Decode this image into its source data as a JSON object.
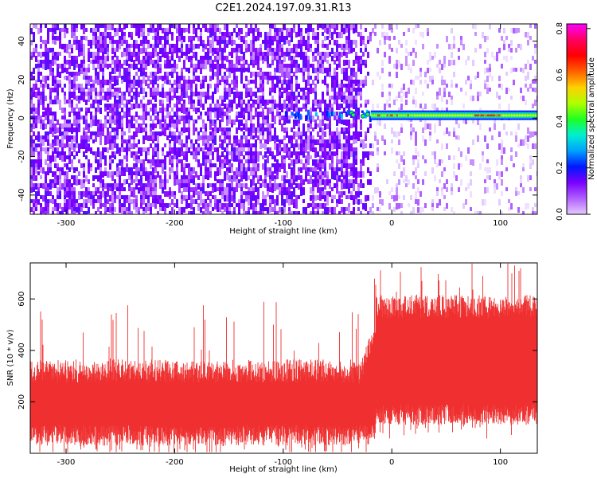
{
  "title": "C2E1.2024.197.09.31.R13",
  "colors": {
    "snr_trace": "#f03030",
    "background": "#ffffff",
    "colormap": [
      "#ffffff",
      "#e6ccff",
      "#b060ff",
      "#7a00ff",
      "#0018ff",
      "#00a0ff",
      "#00f0d0",
      "#20ff20",
      "#b0ff00",
      "#ffd000",
      "#ff6000",
      "#ff0000",
      "#ff0060",
      "#ff00ff"
    ]
  },
  "chart_data": [
    {
      "type": "heatmap",
      "name": "spectrogram",
      "xlabel": "Height of straight line (km)",
      "ylabel": "Frequency (Hz)",
      "xlim": [
        -333,
        134
      ],
      "ylim": [
        -50,
        49
      ],
      "xticks": [
        -300,
        -200,
        -100,
        0,
        100
      ],
      "yticks": [
        -40,
        -20,
        0,
        20,
        40
      ],
      "colorbar": {
        "label": "Normalized spectral amplitude",
        "range": [
          0.0,
          0.82
        ],
        "ticks": [
          "0.0",
          "0.2",
          "0.4",
          "0.6",
          "0.8"
        ]
      },
      "features": {
        "noise_dense_until_km": -35,
        "noise_fade_end_km": -20,
        "signal_line_frequency_hz": 1.5,
        "signal_onset_km": -100,
        "signal_strong_from_km": -20,
        "signal_peak_range_km": [
          75,
          100
        ]
      },
      "grid": false
    },
    {
      "type": "line",
      "name": "snr",
      "xlabel": "Height of straight line (km)",
      "ylabel": "SNR (10 * v/v)",
      "xlim": [
        -333,
        134
      ],
      "ylim": [
        0,
        740
      ],
      "xticks": [
        -300,
        -200,
        -100,
        0,
        100
      ],
      "yticks": [
        200,
        400,
        600
      ],
      "segments": [
        {
          "x_range": [
            -333,
            -20
          ],
          "lower_mean": 70,
          "upper_mean": 320,
          "spike_max": 590
        },
        {
          "x_range": [
            -20,
            134
          ],
          "lower_mean": 150,
          "upper_mean": 570,
          "spike_max": 740
        }
      ],
      "grid": false
    }
  ]
}
